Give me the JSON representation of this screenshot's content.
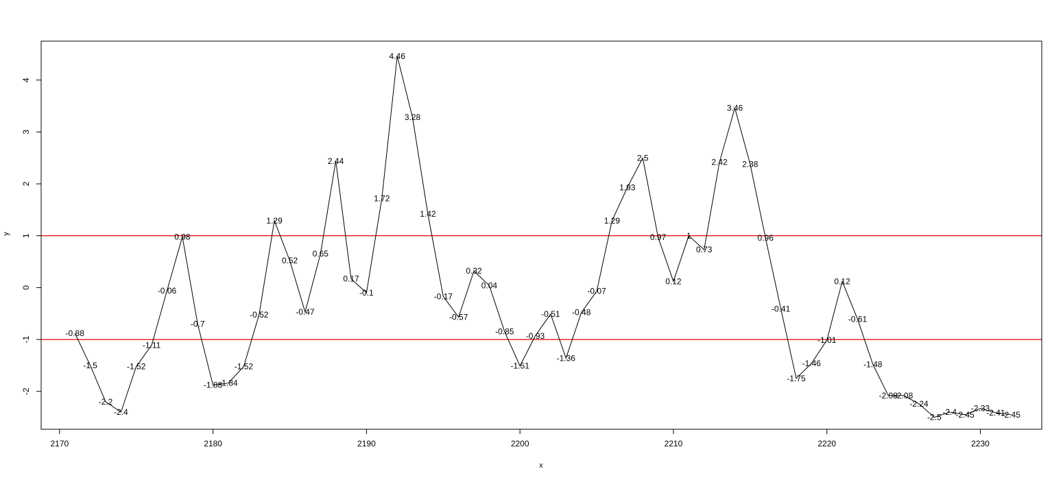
{
  "chart_data": {
    "type": "line",
    "title": "",
    "xlabel": "x",
    "ylabel": "y",
    "xlim": [
      2168.8,
      2234.0
    ],
    "ylim": [
      -2.73,
      4.75
    ],
    "x_ticks": [
      2170,
      2180,
      2190,
      2200,
      2210,
      2220,
      2230
    ],
    "y_ticks": [
      -2,
      -1,
      0,
      1,
      2,
      3,
      4
    ],
    "x_tick_labels": [
      "2170",
      "2180",
      "2190",
      "2200",
      "2210",
      "2220",
      "2230"
    ],
    "y_tick_labels": [
      "-2",
      "-1",
      "0",
      "1",
      "2",
      "3",
      "4"
    ],
    "reference_lines": [
      {
        "axis": "y",
        "value": 1,
        "color": "#e00000"
      },
      {
        "axis": "y",
        "value": -1,
        "color": "#e00000"
      }
    ],
    "series": [
      {
        "x": [
          2171,
          2172,
          2173,
          2174,
          2175,
          2176,
          2177,
          2178,
          2179,
          2180,
          2181,
          2182,
          2183,
          2184,
          2185,
          2186,
          2187,
          2188,
          2189,
          2190,
          2191,
          2192,
          2193,
          2194,
          2195,
          2196,
          2197,
          2198,
          2199,
          2200,
          2201,
          2202,
          2203,
          2204,
          2205,
          2206,
          2207,
          2208,
          2209,
          2210,
          2211,
          2212,
          2213,
          2214,
          2215,
          2216,
          2217,
          2218,
          2219,
          2220,
          2221,
          2222,
          2223,
          2224,
          2225,
          2226,
          2227,
          2228,
          2229,
          2230,
          2231,
          2232
        ],
        "y": [
          -0.88,
          -1.5,
          -2.2,
          -2.4,
          -1.52,
          -1.11,
          -0.06,
          0.98,
          -0.7,
          -1.88,
          -1.84,
          -1.52,
          -0.52,
          1.29,
          0.52,
          -0.47,
          0.65,
          2.44,
          0.17,
          -0.1,
          1.72,
          4.46,
          3.28,
          1.42,
          -0.17,
          -0.57,
          0.32,
          0.04,
          -0.85,
          -1.51,
          -0.93,
          -0.51,
          -1.36,
          -0.48,
          -0.07,
          1.29,
          1.93,
          2.5,
          0.97,
          0.12,
          1,
          0.73,
          2.42,
          3.46,
          2.38,
          0.96,
          -0.41,
          -1.75,
          -1.46,
          -1.01,
          0.12,
          -0.61,
          -1.48,
          -2.08,
          -2.08,
          -2.24,
          -2.5,
          -2.4,
          -2.45,
          -2.33,
          -2.41,
          -2.45
        ],
        "labels": [
          "-0.88",
          "-1.5",
          "-2.2",
          "-2.4",
          "-1.52",
          "-1.11",
          "-0.06",
          "0.98",
          "-0.7",
          "-1.88",
          "-1.84",
          "-1.52",
          "-0.52",
          "1.29",
          "0.52",
          "-0.47",
          "0.65",
          "2.44",
          "0.17",
          "-0.1",
          "1.72",
          "4.46",
          "3.28",
          "1.42",
          "-0.17",
          "-0.57",
          "0.32",
          "0.04",
          "-0.85",
          "-1.51",
          "-0.93",
          "-0.51",
          "-1.36",
          "-0.48",
          "-0.07",
          "1.29",
          "1.93",
          "2.5",
          "0.97",
          "0.12",
          "1",
          "0.73",
          "2.42",
          "3.46",
          "2.38",
          "0.96",
          "-0.41",
          "-1.75",
          "-1.46",
          "-1.01",
          "0.12",
          "-0.61",
          "-1.48",
          "-2.08",
          "-2.08",
          "-2.24",
          "-2.5",
          "-2.4",
          "-2.45",
          "-2.33",
          "-2.41",
          "-2.45"
        ]
      }
    ],
    "line_color": "#000000",
    "grid": false
  }
}
